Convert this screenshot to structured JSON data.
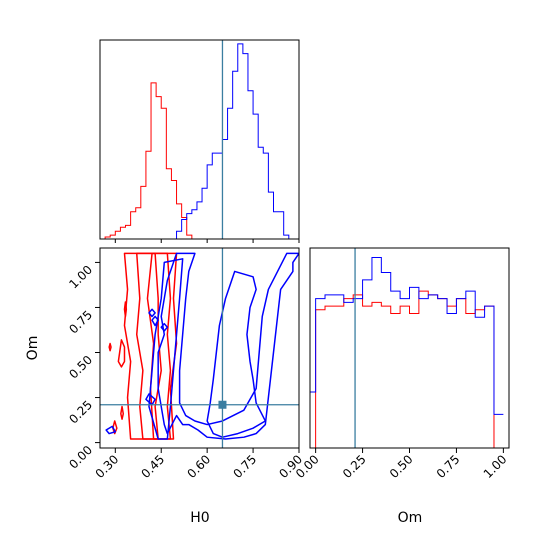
{
  "colors": {
    "series_a": "#ff0000",
    "series_b": "#0000ff",
    "truth": "#3b7ea1",
    "axis": "#000000"
  },
  "chart_data": [
    {
      "type": "histogram",
      "panel": "H0 marginal",
      "xlim": [
        0.25,
        0.9
      ],
      "truth": 0.65,
      "bin_edges": [
        0.25,
        0.2667,
        0.2833,
        0.3,
        0.3167,
        0.3333,
        0.35,
        0.3667,
        0.3833,
        0.4,
        0.4167,
        0.4333,
        0.45,
        0.4667,
        0.4833,
        0.5,
        0.5167,
        0.5333,
        0.55,
        0.5667,
        0.5833,
        0.6,
        0.6167,
        0.6333,
        0.65,
        0.6667,
        0.6833,
        0.7,
        0.7167,
        0.7333,
        0.75,
        0.7667,
        0.7833,
        0.8,
        0.8167,
        0.8333,
        0.85,
        0.8667,
        0.8833,
        0.9
      ],
      "series": [
        {
          "values": [
            0,
            1,
            2,
            4,
            6,
            7,
            14,
            16,
            27,
            45,
            80,
            73,
            67,
            36,
            30,
            18,
            11,
            2,
            0,
            0,
            0,
            0,
            0,
            0,
            0,
            0,
            0,
            0,
            0,
            0,
            0,
            0,
            0,
            0,
            0,
            0,
            0,
            0,
            0
          ]
        },
        {
          "values": [
            0,
            0,
            0,
            0,
            0,
            0,
            0,
            0,
            0,
            0,
            0,
            0,
            0,
            0,
            0,
            4,
            10,
            13,
            15,
            19,
            26,
            38,
            44,
            44,
            51,
            67,
            86,
            100,
            95,
            76,
            64,
            47,
            44,
            24,
            14,
            14,
            2,
            0,
            0
          ]
        }
      ]
    },
    {
      "type": "contour",
      "panel": "H0 vs Om",
      "xlabel": "H0",
      "ylabel": "Om",
      "xlim": [
        0.25,
        0.9
      ],
      "ylim": [
        -0.03,
        1.08
      ],
      "xticks": [
        "0.30",
        "0.45",
        "0.60",
        "0.75",
        "0.90"
      ],
      "yticks": [
        "0.00",
        "0.25",
        "0.50",
        "0.75",
        "1.00"
      ],
      "truth": {
        "x": 0.65,
        "y": 0.21
      },
      "series": [
        {
          "contours": [
            [
              [
                0.39,
                0.02
              ],
              [
                0.38,
                0.2
              ],
              [
                0.39,
                0.4
              ],
              [
                0.37,
                0.6
              ],
              [
                0.38,
                0.8
              ],
              [
                0.37,
                1.05
              ],
              [
                0.43,
                1.05
              ],
              [
                0.44,
                0.8
              ],
              [
                0.44,
                0.6
              ],
              [
                0.45,
                0.4
              ],
              [
                0.43,
                0.2
              ],
              [
                0.44,
                0.02
              ],
              [
                0.39,
                0.02
              ]
            ],
            [
              [
                0.35,
                0.02
              ],
              [
                0.34,
                0.25
              ],
              [
                0.35,
                0.45
              ],
              [
                0.33,
                0.65
              ],
              [
                0.34,
                0.85
              ],
              [
                0.33,
                1.05
              ],
              [
                0.47,
                1.05
              ],
              [
                0.48,
                0.8
              ],
              [
                0.47,
                0.6
              ],
              [
                0.48,
                0.4
              ],
              [
                0.47,
                0.2
              ],
              [
                0.48,
                0.02
              ],
              [
                0.35,
                0.02
              ]
            ],
            [
              [
                0.425,
                0.02
              ],
              [
                0.415,
                0.3
              ],
              [
                0.425,
                0.55
              ],
              [
                0.405,
                0.8
              ],
              [
                0.42,
                1.05
              ],
              [
                0.5,
                1.05
              ],
              [
                0.49,
                0.8
              ],
              [
                0.5,
                0.55
              ],
              [
                0.48,
                0.3
              ],
              [
                0.49,
                0.02
              ],
              [
                0.425,
                0.02
              ]
            ],
            [
              [
                0.32,
                0.57
              ],
              [
                0.33,
                0.53
              ],
              [
                0.33,
                0.45
              ],
              [
                0.32,
                0.42
              ],
              [
                0.31,
                0.45
              ],
              [
                0.32,
                0.57
              ]
            ],
            [
              [
                0.333,
                0.78
              ],
              [
                0.336,
                0.74
              ],
              [
                0.333,
                0.7
              ],
              [
                0.33,
                0.74
              ],
              [
                0.333,
                0.78
              ]
            ],
            [
              [
                0.322,
                0.2
              ],
              [
                0.326,
                0.16
              ],
              [
                0.322,
                0.13
              ],
              [
                0.318,
                0.16
              ],
              [
                0.322,
                0.2
              ]
            ],
            [
              [
                0.298,
                0.12
              ],
              [
                0.305,
                0.08
              ],
              [
                0.298,
                0.05
              ],
              [
                0.292,
                0.08
              ],
              [
                0.298,
                0.12
              ]
            ],
            [
              [
                0.283,
                0.55
              ],
              [
                0.286,
                0.53
              ],
              [
                0.283,
                0.51
              ],
              [
                0.28,
                0.53
              ],
              [
                0.283,
                0.55
              ]
            ]
          ]
        },
        {
          "contours": [
            [
              [
                0.44,
                0.02
              ],
              [
                0.41,
                0.2
              ],
              [
                0.42,
                0.4
              ],
              [
                0.43,
                0.6
              ],
              [
                0.45,
                0.8
              ],
              [
                0.46,
                1.0
              ],
              [
                0.52,
                1.02
              ],
              [
                0.51,
                0.8
              ],
              [
                0.5,
                0.6
              ],
              [
                0.49,
                0.4
              ],
              [
                0.48,
                0.2
              ],
              [
                0.47,
                0.02
              ],
              [
                0.44,
                0.02
              ]
            ],
            [
              [
                0.62,
                0.05
              ],
              [
                0.6,
                0.12
              ],
              [
                0.61,
                0.22
              ],
              [
                0.62,
                0.35
              ],
              [
                0.63,
                0.5
              ],
              [
                0.64,
                0.65
              ],
              [
                0.66,
                0.8
              ],
              [
                0.69,
                0.95
              ],
              [
                0.75,
                0.92
              ],
              [
                0.76,
                0.85
              ],
              [
                0.74,
                0.75
              ],
              [
                0.73,
                0.6
              ],
              [
                0.74,
                0.45
              ],
              [
                0.75,
                0.35
              ],
              [
                0.76,
                0.22
              ],
              [
                0.79,
                0.12
              ],
              [
                0.75,
                0.08
              ],
              [
                0.7,
                0.05
              ],
              [
                0.65,
                0.03
              ],
              [
                0.62,
                0.05
              ]
            ],
            [
              [
                0.88,
                1.0
              ],
              [
                0.88,
                0.95
              ],
              [
                0.84,
                0.85
              ],
              [
                0.83,
                0.7
              ],
              [
                0.82,
                0.55
              ],
              [
                0.81,
                0.4
              ],
              [
                0.8,
                0.25
              ],
              [
                0.79,
                0.1
              ],
              [
                0.76,
                0.05
              ],
              [
                0.72,
                0.03
              ],
              [
                0.66,
                0.02
              ],
              [
                0.6,
                0.03
              ],
              [
                0.57,
                0.07
              ],
              [
                0.54,
                0.1
              ],
              [
                0.52,
                0.1
              ],
              [
                0.5,
                0.15
              ],
              [
                0.47,
                0.05
              ],
              [
                0.46,
                0.1
              ],
              [
                0.44,
                0.3
              ],
              [
                0.44,
                0.5
              ],
              [
                0.46,
                0.6
              ],
              [
                0.45,
                0.7
              ],
              [
                0.47,
                0.9
              ],
              [
                0.5,
                1.05
              ],
              [
                0.56,
                1.05
              ],
              [
                0.54,
                0.95
              ],
              [
                0.53,
                0.8
              ],
              [
                0.52,
                0.6
              ],
              [
                0.51,
                0.4
              ],
              [
                0.51,
                0.22
              ],
              [
                0.53,
                0.15
              ],
              [
                0.56,
                0.12
              ],
              [
                0.6,
                0.1
              ],
              [
                0.65,
                0.12
              ],
              [
                0.72,
                0.18
              ],
              [
                0.76,
                0.3
              ],
              [
                0.77,
                0.5
              ],
              [
                0.78,
                0.7
              ],
              [
                0.8,
                0.85
              ],
              [
                0.83,
                0.95
              ],
              [
                0.86,
                1.05
              ],
              [
                0.9,
                1.05
              ],
              [
                0.88,
                1.0
              ]
            ],
            [
              [
                0.27,
                0.07
              ],
              [
                0.28,
                0.05
              ],
              [
                0.3,
                0.06
              ],
              [
                0.29,
                0.09
              ],
              [
                0.27,
                0.07
              ]
            ],
            [
              [
                0.4,
                0.24
              ],
              [
                0.42,
                0.21
              ],
              [
                0.43,
                0.24
              ],
              [
                0.41,
                0.27
              ],
              [
                0.4,
                0.24
              ]
            ],
            [
              [
                0.45,
                0.64
              ],
              [
                0.46,
                0.62
              ],
              [
                0.47,
                0.64
              ],
              [
                0.46,
                0.66
              ],
              [
                0.45,
                0.64
              ]
            ],
            [
              [
                0.41,
                0.72
              ],
              [
                0.42,
                0.7
              ],
              [
                0.43,
                0.72
              ],
              [
                0.42,
                0.74
              ],
              [
                0.41,
                0.72
              ]
            ],
            [
              [
                0.42,
                0.68
              ],
              [
                0.43,
                0.65
              ],
              [
                0.44,
                0.68
              ],
              [
                0.43,
                0.7
              ],
              [
                0.42,
                0.68
              ]
            ]
          ]
        }
      ]
    },
    {
      "type": "histogram",
      "panel": "Om marginal",
      "xlabel": "Om",
      "xlim": [
        -0.03,
        1.03
      ],
      "xticks": [
        "0.00",
        "0.25",
        "0.50",
        "0.75",
        "1.00"
      ],
      "truth": 0.21,
      "bin_edges": [
        -0.03,
        0.0,
        0.05,
        0.1,
        0.15,
        0.2,
        0.25,
        0.3,
        0.35,
        0.4,
        0.45,
        0.5,
        0.55,
        0.6,
        0.65,
        0.7,
        0.75,
        0.8,
        0.85,
        0.9,
        0.95,
        1.0
      ],
      "series": [
        {
          "values": [
            0,
            74,
            76,
            76,
            80,
            82,
            76,
            78,
            76,
            72,
            76,
            72,
            84,
            82,
            80,
            76,
            80,
            72,
            74,
            76,
            0
          ]
        },
        {
          "values": [
            30,
            80,
            82,
            82,
            78,
            80,
            90,
            102,
            94,
            84,
            80,
            86,
            80,
            82,
            80,
            72,
            80,
            84,
            70,
            76,
            18
          ]
        }
      ]
    }
  ]
}
